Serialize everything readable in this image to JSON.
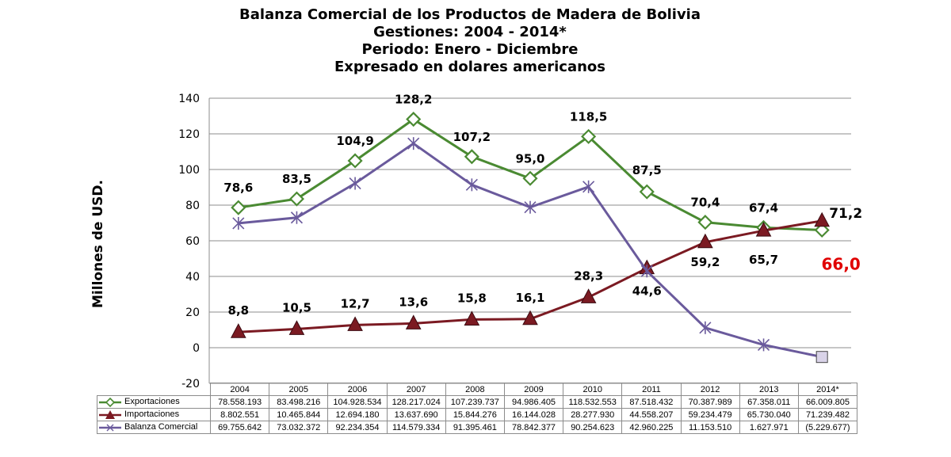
{
  "titles": [
    "Balanza Comercial de los Productos de Madera de Bolivia",
    "Gestiones: 2004 - 2014*",
    "Periodo: Enero - Diciembre",
    "Expresado en dolares americanos"
  ],
  "chart_data": {
    "type": "line",
    "ylabel": "Millones de USD.",
    "ylim": [
      -20,
      140
    ],
    "yticks": [
      -20,
      0,
      20,
      40,
      60,
      80,
      100,
      120,
      140
    ],
    "grid": true,
    "categories": [
      "2004",
      "2005",
      "2006",
      "2007",
      "2008",
      "2009",
      "2010",
      "2011",
      "2012",
      "2013",
      "2014*"
    ],
    "series": [
      {
        "name": "Exportaciones",
        "color": "#4a8a32",
        "marker": "diamond",
        "values": [
          78.6,
          83.5,
          104.9,
          128.2,
          107.2,
          95.0,
          118.5,
          87.5,
          70.4,
          67.4,
          66.0
        ],
        "labels": [
          "78,6",
          "83,5",
          "104,9",
          "128,2",
          "107,2",
          "95,0",
          "118,5",
          "87,5",
          "70,4",
          "67,4",
          "66,0"
        ],
        "table": [
          "78.558.193",
          "83.498.216",
          "104.928.534",
          "128.217.024",
          "107.239.737",
          "94.986.405",
          "118.532.553",
          "87.518.432",
          "70.387.989",
          "67.358.011",
          "66.009.805"
        ]
      },
      {
        "name": "Importaciones",
        "color": "#7b1a22",
        "marker": "triangle",
        "values": [
          8.8,
          10.5,
          12.7,
          13.6,
          15.8,
          16.1,
          28.3,
          44.6,
          59.2,
          65.7,
          71.2
        ],
        "labels": [
          "8,8",
          "10,5",
          "12,7",
          "13,6",
          "15,8",
          "16,1",
          "28,3",
          "44,6",
          "59,2",
          "65,7",
          "71,2"
        ],
        "table": [
          "8.802.551",
          "10.465.844",
          "12.694.180",
          "13.637.690",
          "15.844.276",
          "16.144.028",
          "28.277.930",
          "44.558.207",
          "59.234.479",
          "65.730.040",
          "71.239.482"
        ]
      },
      {
        "name": "Balanza Comercial",
        "color": "#6a5a9c",
        "marker": "asterisk",
        "values": [
          69.8,
          73.0,
          92.2,
          114.6,
          91.4,
          78.8,
          90.3,
          43.0,
          11.2,
          1.6,
          -5.2
        ],
        "table": [
          "69.755.642",
          "73.032.372",
          "92.234.354",
          "114.579.334",
          "91.395.461",
          "78.842.377",
          "90.254.623",
          "42.960.225",
          "11.153.510",
          "1.627.971",
          "(5.229.677)"
        ]
      }
    ]
  }
}
